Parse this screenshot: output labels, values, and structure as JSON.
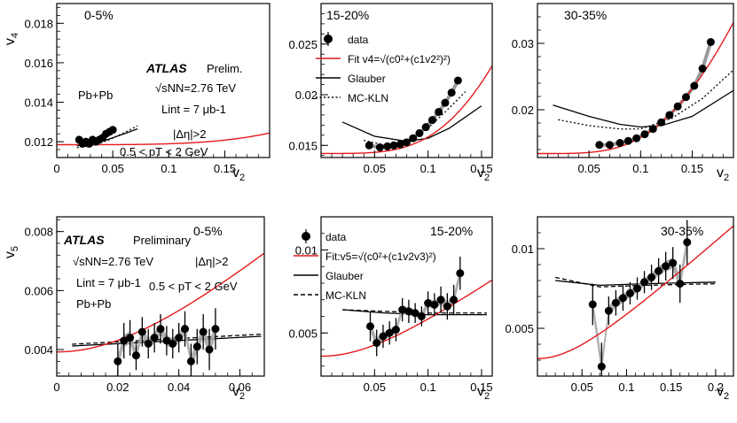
{
  "chart_data": [
    {
      "type": "scatter",
      "panel": "top-1",
      "centrality": "0-5%",
      "xlabel": "v2",
      "ylabel": "v4",
      "xlim": [
        0,
        0.19
      ],
      "ylim": [
        0.0112,
        0.019
      ],
      "xticks": [
        0,
        0.05,
        0.1,
        0.15
      ],
      "xtick_labels": [
        "0",
        "0.05",
        "0.1",
        "0.15"
      ],
      "yticks": [
        0.012,
        0.014,
        0.016,
        0.018
      ],
      "ytick_labels": [
        "0.012",
        "0.014",
        "0.016",
        "0.018"
      ],
      "fit": {
        "c0": 0.01185,
        "c1": 0.105
      },
      "data": {
        "x": [
          0.02,
          0.023,
          0.026,
          0.029,
          0.032,
          0.035,
          0.038,
          0.041,
          0.044,
          0.047,
          0.05
        ],
        "y": [
          0.0121,
          0.0119,
          0.012,
          0.0119,
          0.0121,
          0.012,
          0.0121,
          0.0122,
          0.0124,
          0.0125,
          0.0126
        ]
      },
      "glauber": {
        "x": [
          0.018,
          0.03,
          0.045,
          0.06,
          0.072
        ],
        "y": [
          0.0118,
          0.01185,
          0.0121,
          0.0124,
          0.01265
        ]
      },
      "mckln": {
        "x": [
          0.018,
          0.03,
          0.045,
          0.06,
          0.072
        ],
        "y": [
          0.0117,
          0.0118,
          0.01205,
          0.01245,
          0.0128
        ]
      },
      "annotations": {
        "atlas": "ATLAS",
        "atlas_tag": "Prelim.",
        "system": "Pb+Pb",
        "energy": "√sNN=2.76 TeV",
        "lumi": "Lint = 7 μb-1",
        "eta": "|Δη|>2",
        "pt": "0.5 < pT < 2 GeV"
      }
    },
    {
      "type": "scatter",
      "panel": "top-2",
      "centrality": "15-20%",
      "xlabel": "v2",
      "ylabel": "",
      "xlim": [
        0,
        0.16
      ],
      "ylim": [
        0.0138,
        0.029
      ],
      "xticks": [
        0.05,
        0.1,
        0.15
      ],
      "xtick_labels": [
        "0.05",
        "0.1",
        "0.15"
      ],
      "yticks": [
        0.015,
        0.02,
        0.025
      ],
      "ytick_labels": [
        "0.015",
        "0.02",
        "0.025"
      ],
      "fit": {
        "c0": 0.0142,
        "c1": 0.7
      },
      "data": {
        "x": [
          0.045,
          0.055,
          0.062,
          0.068,
          0.074,
          0.08,
          0.086,
          0.092,
          0.098,
          0.104,
          0.11,
          0.116,
          0.122,
          0.128
        ],
        "y": [
          0.015,
          0.0148,
          0.0149,
          0.015,
          0.0151,
          0.0153,
          0.0157,
          0.0162,
          0.0168,
          0.0175,
          0.0183,
          0.0192,
          0.0202,
          0.0214
        ]
      },
      "glauber": {
        "x": [
          0.02,
          0.05,
          0.08,
          0.1,
          0.12,
          0.15
        ],
        "y": [
          0.0173,
          0.0159,
          0.0154,
          0.0157,
          0.0167,
          0.0189
        ]
      },
      "mckln": {
        "x": [
          0.04,
          0.06,
          0.08,
          0.1,
          0.12,
          0.135
        ],
        "y": [
          0.0155,
          0.015,
          0.0154,
          0.0167,
          0.0187,
          0.0203
        ]
      },
      "legend": {
        "data": "data",
        "fit": "Fit v4=√(c0²+(c1v2²)²)",
        "glauber": "Glauber",
        "mckln": "MC-KLN"
      }
    },
    {
      "type": "scatter",
      "panel": "top-3",
      "centrality": "30-35%",
      "xlabel": "v2",
      "ylabel": "",
      "xlim": [
        0,
        0.19
      ],
      "ylim": [
        0.0128,
        0.036
      ],
      "xticks": [
        0.05,
        0.1,
        0.15
      ],
      "xtick_labels": [
        "0.05",
        "0.1",
        "0.15"
      ],
      "yticks": [
        0.02,
        0.03
      ],
      "ytick_labels": [
        "0.02",
        "0.03"
      ],
      "fit": {
        "c0": 0.0134,
        "c1": 0.84
      },
      "data": {
        "x": [
          0.06,
          0.07,
          0.08,
          0.088,
          0.096,
          0.104,
          0.112,
          0.12,
          0.128,
          0.136,
          0.144,
          0.152,
          0.16,
          0.168
        ],
        "y": [
          0.0147,
          0.0147,
          0.015,
          0.0153,
          0.0157,
          0.0163,
          0.0171,
          0.0181,
          0.0192,
          0.0205,
          0.0219,
          0.0236,
          0.0262,
          0.0302
        ]
      },
      "glauber": {
        "x": [
          0.015,
          0.05,
          0.08,
          0.1,
          0.12,
          0.15,
          0.19
        ],
        "y": [
          0.0207,
          0.019,
          0.0178,
          0.0174,
          0.0176,
          0.019,
          0.0229
        ]
      },
      "mckln": {
        "x": [
          0.02,
          0.05,
          0.08,
          0.1,
          0.13,
          0.16,
          0.19
        ],
        "y": [
          0.0185,
          0.0176,
          0.0171,
          0.0171,
          0.0187,
          0.0217,
          0.026
        ]
      }
    },
    {
      "type": "scatter",
      "panel": "bottom-1",
      "centrality": "0-5%",
      "xlabel": "v2",
      "ylabel": "v5",
      "xlim": [
        0,
        0.068
      ],
      "ylim": [
        0.0031,
        0.0085
      ],
      "xticks": [
        0,
        0.02,
        0.04,
        0.06
      ],
      "xtick_labels": [
        "0",
        "0.02",
        "0.04",
        "0.06"
      ],
      "yticks": [
        0.004,
        0.006,
        0.008
      ],
      "ytick_labels": [
        "0.004",
        "0.006",
        "0.008"
      ],
      "fit": {
        "c0": 0.00392,
        "c1v3": 0.09
      },
      "data": {
        "x": [
          0.02,
          0.022,
          0.024,
          0.026,
          0.028,
          0.03,
          0.032,
          0.034,
          0.036,
          0.038,
          0.04,
          0.042,
          0.044,
          0.046,
          0.048,
          0.05,
          0.052
        ],
        "y": [
          0.0036,
          0.0043,
          0.0044,
          0.0038,
          0.0046,
          0.0042,
          0.0044,
          0.0047,
          0.0043,
          0.0042,
          0.0044,
          0.0047,
          0.0036,
          0.0041,
          0.0046,
          0.004,
          0.0047
        ],
        "err": [
          0.0006,
          0.0006,
          0.0006,
          0.0005,
          0.0005,
          0.0005,
          0.0005,
          0.0005,
          0.0005,
          0.0005,
          0.0005,
          0.0006,
          0.0006,
          0.0006,
          0.0006,
          0.0007,
          0.0007
        ]
      },
      "glauber": {
        "x": [
          0.005,
          0.067
        ],
        "y": [
          0.00412,
          0.00445
        ]
      },
      "mckln": {
        "x": [
          0.005,
          0.067
        ],
        "y": [
          0.00418,
          0.00452
        ]
      },
      "annotations": {
        "atlas": "ATLAS",
        "atlas_tag": "Preliminary",
        "system": "Pb+Pb",
        "energy": "√sNN=2.76 TeV",
        "lumi": "Lint = 7 μb-1",
        "eta": "|Δη|>2",
        "pt": "0.5 < pT < 2 GeV"
      }
    },
    {
      "type": "scatter",
      "panel": "bottom-2",
      "centrality": "15-20%",
      "xlabel": "v2",
      "ylabel": "",
      "xlim": [
        0,
        0.16
      ],
      "ylim": [
        0.0024,
        0.012
      ],
      "xticks": [
        0.05,
        0.1,
        0.15
      ],
      "xtick_labels": [
        "0.05",
        "0.1",
        "0.15"
      ],
      "yticks": [
        0.005,
        0.01
      ],
      "ytick_labels": [
        "0.005",
        "0.01"
      ],
      "fit": {
        "c0": 0.0036,
        "c1v3": 0.046
      },
      "data": {
        "x": [
          0.046,
          0.052,
          0.058,
          0.064,
          0.07,
          0.076,
          0.082,
          0.088,
          0.094,
          0.1,
          0.106,
          0.112,
          0.118,
          0.124,
          0.13
        ],
        "y": [
          0.0054,
          0.0044,
          0.0048,
          0.005,
          0.0052,
          0.0064,
          0.0063,
          0.0062,
          0.006,
          0.0068,
          0.0067,
          0.007,
          0.0066,
          0.007,
          0.0086
        ],
        "err": [
          0.0009,
          0.0008,
          0.0007,
          0.0007,
          0.0007,
          0.0007,
          0.0007,
          0.0006,
          0.0006,
          0.0007,
          0.0007,
          0.0008,
          0.0008,
          0.0009,
          0.001
        ]
      },
      "glauber": {
        "x": [
          0.02,
          0.06,
          0.1,
          0.155
        ],
        "y": [
          0.0064,
          0.0062,
          0.0061,
          0.0061
        ]
      },
      "mckln": {
        "x": [
          0.02,
          0.06,
          0.1,
          0.155
        ],
        "y": [
          0.0064,
          0.0063,
          0.0062,
          0.0062
        ]
      },
      "legend": {
        "data": "data",
        "fit": "Fit:v5=√(c0²+(c1v2v3)²)",
        "glauber": "Glauber",
        "mckln": "MC-KLN"
      }
    },
    {
      "type": "scatter",
      "panel": "bottom-3",
      "centrality": "30-35%",
      "xlabel": "v2",
      "ylabel": "",
      "xlim": [
        0,
        0.22
      ],
      "ylim": [
        0.002,
        0.012
      ],
      "xticks": [
        0.05,
        0.1,
        0.15,
        0.2
      ],
      "xtick_labels": [
        "0.05",
        "0.1",
        "0.15",
        "0.2"
      ],
      "yticks": [
        0.005,
        0.01
      ],
      "ytick_labels": [
        "0.005",
        "0.01"
      ],
      "fit": {
        "c0": 0.0031,
        "c1v3": 0.05
      },
      "data": {
        "x": [
          0.062,
          0.072,
          0.08,
          0.088,
          0.096,
          0.104,
          0.112,
          0.12,
          0.128,
          0.136,
          0.144,
          0.152,
          0.16,
          0.168
        ],
        "y": [
          0.0065,
          0.0026,
          0.0061,
          0.0066,
          0.0069,
          0.0072,
          0.0075,
          0.0079,
          0.0082,
          0.0086,
          0.0089,
          0.0091,
          0.0078,
          0.0104
        ],
        "err": [
          0.0013,
          0.0015,
          0.0009,
          0.0008,
          0.0008,
          0.0007,
          0.0007,
          0.0007,
          0.0008,
          0.0008,
          0.0009,
          0.001,
          0.0012,
          0.0014
        ]
      },
      "glauber": {
        "x": [
          0.02,
          0.07,
          0.12,
          0.2
        ],
        "y": [
          0.008,
          0.0077,
          0.0078,
          0.0079
        ]
      },
      "mckln": {
        "x": [
          0.02,
          0.07,
          0.12,
          0.2
        ],
        "y": [
          0.0082,
          0.0076,
          0.0077,
          0.0078
        ]
      }
    }
  ]
}
